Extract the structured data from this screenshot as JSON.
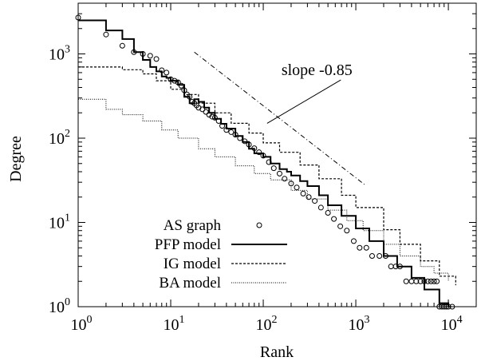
{
  "chart_data": {
    "type": "scatter",
    "title": "",
    "xlabel": "Rank",
    "ylabel": "Degree",
    "xscale": "log",
    "yscale": "log",
    "xlim": [
      1,
      20000
    ],
    "ylim": [
      1,
      4000
    ],
    "grid": false,
    "legend_position": "bottom-left",
    "x_ticks": [
      {
        "value": 1,
        "base": "10",
        "exp": "0"
      },
      {
        "value": 10,
        "base": "10",
        "exp": "1"
      },
      {
        "value": 100,
        "base": "10",
        "exp": "2"
      },
      {
        "value": 1000,
        "base": "10",
        "exp": "3"
      },
      {
        "value": 10000,
        "base": "10",
        "exp": "4"
      }
    ],
    "y_ticks": [
      {
        "value": 1,
        "base": "10",
        "exp": "0"
      },
      {
        "value": 10,
        "base": "10",
        "exp": "1"
      },
      {
        "value": 100,
        "base": "10",
        "exp": "2"
      },
      {
        "value": 1000,
        "base": "10",
        "exp": "3"
      }
    ],
    "series": [
      {
        "name": "AS graph",
        "style": "points",
        "color": "#000000",
        "x": [
          1,
          2,
          3,
          4,
          5,
          6,
          7,
          8,
          9,
          10,
          11,
          12,
          13,
          14,
          15,
          16,
          17,
          18,
          19,
          20,
          22,
          24,
          26,
          28,
          30,
          33,
          36,
          40,
          45,
          50,
          56,
          63,
          70,
          80,
          90,
          100,
          115,
          130,
          150,
          170,
          200,
          230,
          270,
          310,
          360,
          420,
          500,
          580,
          680,
          800,
          950,
          1100,
          1300,
          1500,
          1800,
          2100,
          2400,
          2700,
          3000,
          3500,
          4000,
          4500,
          5000,
          5500,
          6000,
          6500,
          7000,
          7500,
          8000,
          8500,
          9000,
          9500,
          10000,
          11000
        ],
        "y": [
          2700,
          1700,
          1250,
          1050,
          1000,
          950,
          870,
          640,
          600,
          500,
          480,
          460,
          420,
          370,
          330,
          310,
          270,
          260,
          245,
          230,
          220,
          205,
          190,
          180,
          175,
          160,
          140,
          125,
          118,
          110,
          100,
          92,
          84,
          76,
          68,
          62,
          52,
          44,
          38,
          33,
          29,
          26,
          22,
          20,
          18,
          15,
          13,
          11,
          9,
          8,
          6,
          5,
          5,
          4,
          4,
          4,
          3,
          3,
          3,
          2,
          2,
          2,
          2,
          2,
          2,
          2,
          2,
          2,
          1,
          1,
          1,
          1,
          1,
          1
        ]
      },
      {
        "name": "PFP model",
        "style": "solid",
        "color": "#000000",
        "x": [
          1,
          2,
          3,
          4,
          5,
          6,
          7,
          8,
          9,
          10,
          12,
          14,
          16,
          18,
          20,
          23,
          26,
          30,
          35,
          40,
          50,
          60,
          70,
          80,
          100,
          120,
          150,
          180,
          200,
          250,
          300,
          400,
          500,
          700,
          1000,
          1400,
          2000,
          2800,
          4000,
          5500,
          8000,
          10000
        ],
        "y": [
          2500,
          1900,
          1500,
          1050,
          850,
          700,
          620,
          540,
          520,
          480,
          430,
          310,
          260,
          290,
          270,
          230,
          200,
          170,
          148,
          130,
          106,
          90,
          75,
          66,
          60,
          50,
          43,
          40,
          36,
          31,
          27,
          21,
          16,
          12,
          8.5,
          6,
          4,
          3,
          2.2,
          1.6,
          1.1,
          1
        ]
      },
      {
        "name": "IG model",
        "style": "dashed",
        "color": "#000000",
        "x": [
          1,
          3,
          5,
          7,
          10,
          14,
          20,
          30,
          45,
          70,
          100,
          150,
          250,
          400,
          700,
          1000,
          2000,
          3000,
          5000,
          8000,
          12000
        ],
        "y": [
          700,
          650,
          580,
          480,
          380,
          330,
          260,
          200,
          150,
          115,
          88,
          68,
          48,
          33,
          21,
          15,
          8.2,
          5.5,
          3.5,
          2.3,
          1.8
        ]
      },
      {
        "name": "BA model",
        "style": "dotted",
        "color": "#000000",
        "x": [
          1,
          2,
          3,
          5,
          8,
          12,
          20,
          30,
          50,
          80,
          120,
          200,
          300,
          500,
          800,
          1200,
          2000,
          3000,
          5000,
          7000,
          10000
        ],
        "y": [
          290,
          220,
          190,
          160,
          125,
          100,
          75,
          60,
          47,
          38,
          32,
          24,
          19,
          14,
          10.5,
          8,
          5.5,
          4,
          3,
          2.5,
          2
        ]
      }
    ],
    "annotation": {
      "label": "slope -0.85",
      "slope": -0.85,
      "line_from": [
        18,
        1050
      ],
      "line_to": [
        1250,
        28
      ],
      "label_at": [
        380,
        560
      ],
      "pointer_to": [
        110,
        150
      ]
    }
  }
}
